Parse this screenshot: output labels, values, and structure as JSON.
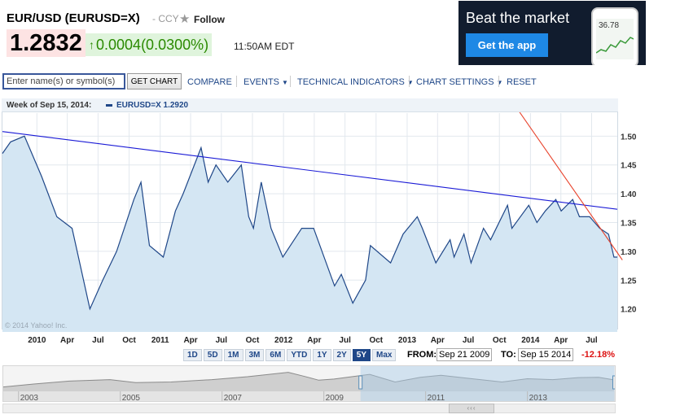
{
  "quote": {
    "title": "EUR/USD (EURUSD=X)",
    "currency_label": "- CCY",
    "follow_label": "Follow",
    "price": "1.2832",
    "change": "0.0004",
    "change_pct": "(0.0300%)",
    "time": "11:50AM EDT",
    "colors": {
      "up": "#2a8a00",
      "price_bg": "#fde3e3",
      "change_bg": "#dff4dc"
    }
  },
  "ad": {
    "headline": "Beat the market",
    "button_label": "Get the app",
    "phone_value": "36.78"
  },
  "toolbar": {
    "search_placeholder": "Enter name(s) or symbol(s)",
    "get_chart_label": "GET CHART",
    "compare_label": "COMPARE",
    "events_label": "EVENTS",
    "technical_label": "TECHNICAL INDICATORS",
    "settings_label": "CHART SETTINGS",
    "reset_label": "RESET"
  },
  "legend": {
    "period": "Week of Sep 15, 2014:",
    "series_label": "EURUSD=X 1.2920"
  },
  "copyright": "© 2014 Yahoo! Inc.",
  "ranges": {
    "buttons": [
      "1D",
      "5D",
      "1M",
      "3M",
      "6M",
      "YTD",
      "1Y",
      "2Y",
      "5Y",
      "Max"
    ],
    "active": "5Y",
    "from_label": "FROM:",
    "from_value": "Sep 21 2009",
    "to_label": "TO:",
    "to_value": "Sep 15 2014",
    "change_pct": "-12.18%"
  },
  "chart_data": {
    "type": "area",
    "series": [
      {
        "name": "EURUSD=X",
        "color": "#1f4788",
        "fill": "#d4e6f3",
        "x": [
          "2009-09-21",
          "2009-10-15",
          "2009-11-25",
          "2010-01-15",
          "2010-03-01",
          "2010-04-15",
          "2010-06-07",
          "2010-07-15",
          "2010-08-25",
          "2010-10-15",
          "2010-11-05",
          "2010-11-30",
          "2011-01-10",
          "2011-02-15",
          "2011-03-10",
          "2011-05-02",
          "2011-05-23",
          "2011-06-15",
          "2011-07-20",
          "2011-08-29",
          "2011-09-20",
          "2011-10-04",
          "2011-10-27",
          "2011-11-25",
          "2011-12-30",
          "2012-02-24",
          "2012-03-30",
          "2012-05-31",
          "2012-06-20",
          "2012-07-24",
          "2012-08-31",
          "2012-09-14",
          "2012-11-13",
          "2012-12-20",
          "2013-01-31",
          "2013-02-15",
          "2013-03-27",
          "2013-05-08",
          "2013-05-20",
          "2013-06-18",
          "2013-07-09",
          "2013-08-15",
          "2013-09-05",
          "2013-10-25",
          "2013-11-07",
          "2013-12-27",
          "2014-01-20",
          "2014-02-14",
          "2014-03-17",
          "2014-04-02",
          "2014-05-06",
          "2014-05-26",
          "2014-06-25",
          "2014-07-25",
          "2014-08-20",
          "2014-09-05",
          "2014-09-15"
        ],
        "values": [
          1.47,
          1.49,
          1.5,
          1.43,
          1.36,
          1.34,
          1.2,
          1.25,
          1.3,
          1.39,
          1.42,
          1.31,
          1.29,
          1.37,
          1.4,
          1.48,
          1.42,
          1.45,
          1.42,
          1.45,
          1.36,
          1.34,
          1.42,
          1.34,
          1.29,
          1.34,
          1.34,
          1.24,
          1.26,
          1.21,
          1.25,
          1.31,
          1.28,
          1.33,
          1.36,
          1.34,
          1.28,
          1.32,
          1.29,
          1.33,
          1.28,
          1.34,
          1.32,
          1.38,
          1.34,
          1.38,
          1.35,
          1.37,
          1.39,
          1.37,
          1.39,
          1.36,
          1.36,
          1.34,
          1.33,
          1.29,
          1.29
        ]
      }
    ],
    "x_tick_labels": [
      "2010",
      "Apr",
      "Jul",
      "Oct",
      "2011",
      "Apr",
      "Jul",
      "Oct",
      "2012",
      "Apr",
      "Jul",
      "Oct",
      "2013",
      "Apr",
      "Jul",
      "Oct",
      "2014",
      "Apr",
      "Jul"
    ],
    "x_tick_dates": [
      "2010-01-01",
      "2010-04-01",
      "2010-07-01",
      "2010-10-01",
      "2011-01-01",
      "2011-04-01",
      "2011-07-01",
      "2011-10-01",
      "2012-01-01",
      "2012-04-01",
      "2012-07-01",
      "2012-10-01",
      "2013-01-01",
      "2013-04-01",
      "2013-07-01",
      "2013-10-01",
      "2014-01-01",
      "2014-04-01",
      "2014-07-01"
    ],
    "xlim": [
      "2009-09-21",
      "2014-09-15"
    ],
    "y_ticks": [
      1.2,
      1.25,
      1.3,
      1.35,
      1.4,
      1.45,
      1.5
    ],
    "y_tick_labels": [
      "1.20",
      "1.25",
      "1.30",
      "1.35",
      "1.40",
      "1.45",
      "1.50"
    ],
    "ylim": [
      1.16,
      1.54
    ],
    "y_axis_side": "right",
    "grid": true,
    "trendlines": [
      {
        "color": "#1a1ad6",
        "start": [
          "2009-09-21",
          1.508
        ],
        "end": [
          "2014-09-15",
          1.373
        ]
      },
      {
        "color": "#e8412a",
        "start": [
          "2013-11-20",
          1.55
        ],
        "end": [
          "2014-09-30",
          1.285
        ]
      }
    ],
    "navigator": {
      "labels": [
        "2003",
        "2005",
        "2007",
        "2009",
        "2011",
        "2013"
      ],
      "label_years": [
        2003,
        2005,
        2007,
        2009,
        2011,
        2013
      ],
      "xlim": [
        2002.7,
        2014.75
      ],
      "selection": [
        2009.72,
        2014.71
      ],
      "years": [
        2002.7,
        2003.3,
        2004.0,
        2004.8,
        2005.3,
        2006.0,
        2006.8,
        2007.5,
        2008.3,
        2008.6,
        2008.9,
        2009.2,
        2009.9,
        2010.4,
        2010.9,
        2011.3,
        2011.8,
        2012.5,
        2013.0,
        2013.5,
        2014.0,
        2014.4,
        2014.71
      ],
      "values": [
        1.05,
        1.15,
        1.25,
        1.3,
        1.2,
        1.22,
        1.3,
        1.4,
        1.55,
        1.42,
        1.28,
        1.32,
        1.48,
        1.22,
        1.38,
        1.45,
        1.35,
        1.22,
        1.33,
        1.3,
        1.37,
        1.38,
        1.29
      ],
      "ylim": [
        0.9,
        1.65
      ]
    }
  }
}
